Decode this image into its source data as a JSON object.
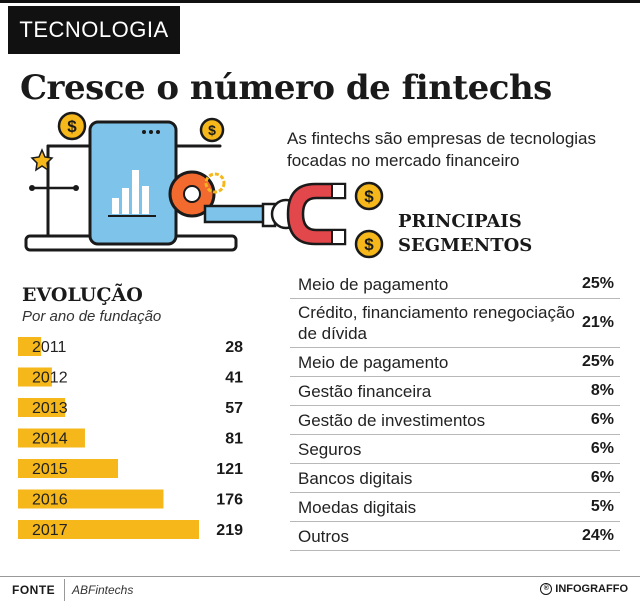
{
  "section_tag": "TECNOLOGIA",
  "headline": "Cresce o número de fintechs",
  "subtitle": "As fintechs são empresas de tecnologias focadas no mercado financeiro",
  "colors": {
    "accent": "#f5b71a",
    "ink": "#1a1a1a",
    "screen": "#7ec4ea",
    "magnet": "#e2474b",
    "orange": "#f26a2e"
  },
  "icons": [
    "coin-icon",
    "star-icon",
    "gear-icon",
    "magnet-icon",
    "laptop-icon",
    "chart-icon"
  ],
  "coin_symbol": "$",
  "segments_title": "PRINCIPAIS SEGMENTOS",
  "segments": [
    {
      "label": "Meio de pagamento",
      "value": "25%"
    },
    {
      "label": "Crédito, financiamento renegociação de dívida",
      "value": "21%"
    },
    {
      "label": "Meio de pagamento",
      "value": "25%"
    },
    {
      "label": "Gestão financeira",
      "value": "8%"
    },
    {
      "label": "Gestão de investimentos",
      "value": "6%"
    },
    {
      "label": "Seguros",
      "value": "6%"
    },
    {
      "label": "Bancos digitais",
      "value": "6%"
    },
    {
      "label": "Moedas digitais",
      "value": "5%"
    },
    {
      "label": "Outros",
      "value": "24%"
    }
  ],
  "evolution": {
    "title": "EVOLUÇÃO",
    "subtitle": "Por ano de fundação"
  },
  "chart_data": {
    "type": "bar",
    "orientation": "horizontal",
    "title": "EVOLUÇÃO",
    "subtitle": "Por ano de fundação",
    "categories": [
      "2011",
      "2012",
      "2013",
      "2014",
      "2015",
      "2016",
      "2017"
    ],
    "values": [
      28,
      41,
      57,
      81,
      121,
      176,
      219
    ],
    "xlim": [
      0,
      219
    ],
    "grid": false
  },
  "footer": {
    "label": "FONTE",
    "source": "ABFintechs",
    "brand": "INFOGRAFFO",
    "brand_icon": "®"
  }
}
